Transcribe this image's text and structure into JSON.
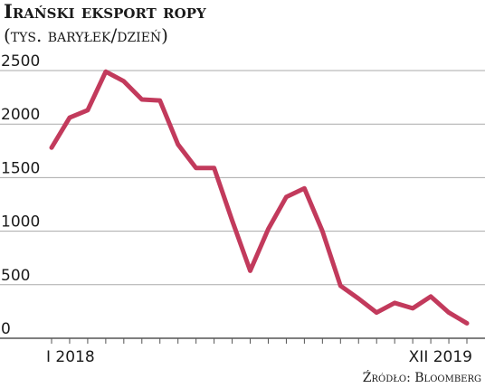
{
  "chart_data": {
    "type": "line",
    "title": "Irański eksport ropy",
    "subtitle": "(tys. baryłek/dzień)",
    "source": "Źródło: Bloomberg",
    "categories": [
      "I 2018",
      null,
      null,
      null,
      null,
      null,
      null,
      null,
      null,
      null,
      null,
      null,
      null,
      null,
      null,
      null,
      null,
      null,
      null,
      null,
      null,
      null,
      null,
      "XII 2019"
    ],
    "values": [
      1780,
      2060,
      2130,
      2490,
      2400,
      2230,
      2220,
      1810,
      1590,
      1590,
      1100,
      630,
      1020,
      1320,
      1400,
      1000,
      490,
      370,
      240,
      330,
      280,
      390,
      240,
      140
    ],
    "color": "#c23a5c",
    "ylim": [
      0,
      2500
    ],
    "yticks": [
      0,
      500,
      1000,
      1500,
      2000,
      2500
    ],
    "grid": true
  }
}
